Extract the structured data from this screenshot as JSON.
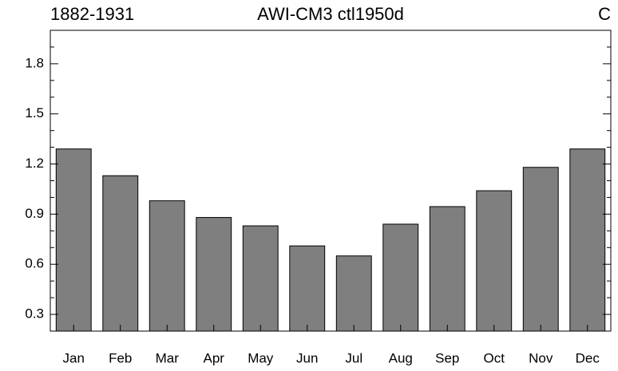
{
  "chart_data": {
    "type": "bar",
    "left_title": "1882-1931",
    "title": "AWI-CM3 ctl1950d",
    "right_title": "C",
    "categories": [
      "Jan",
      "Feb",
      "Mar",
      "Apr",
      "May",
      "Jun",
      "Jul",
      "Aug",
      "Sep",
      "Oct",
      "Nov",
      "Dec"
    ],
    "values": [
      1.29,
      1.13,
      0.98,
      0.88,
      0.83,
      0.71,
      0.65,
      0.84,
      0.945,
      1.04,
      1.18,
      1.29
    ],
    "color": "#7f7f7f",
    "ylim": [
      0.2,
      2.0
    ],
    "yticks": [
      0.3,
      0.6,
      0.9,
      1.2,
      1.5,
      1.8
    ],
    "yminorticks": [
      0.2,
      0.4,
      0.5,
      0.7,
      0.8,
      1.0,
      1.1,
      1.3,
      1.4,
      1.6,
      1.7,
      1.9,
      2.0
    ]
  }
}
